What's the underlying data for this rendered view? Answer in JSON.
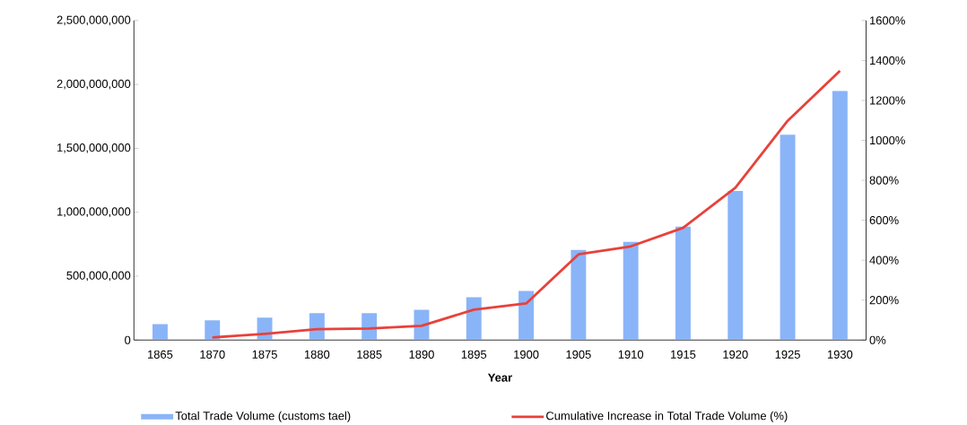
{
  "chart_data": {
    "type": "bar",
    "xlabel": "Year",
    "categories": [
      "1865",
      "1870",
      "1875",
      "1880",
      "1885",
      "1890",
      "1895",
      "1900",
      "1905",
      "1910",
      "1915",
      "1920",
      "1925",
      "1930"
    ],
    "series": [
      {
        "name": "Total Trade Volume (customs tael)",
        "color": "#8ab4f8",
        "values": [
          125000000,
          154000000,
          175000000,
          210000000,
          210000000,
          237000000,
          335000000,
          384000000,
          705000000,
          768000000,
          887000000,
          1166000000,
          1606000000,
          1948000000
        ]
      },
      {
        "name": "Cumulative Increase in Total Trade Volume (%)",
        "type": "line",
        "axis": "y2",
        "color": "#e8413a",
        "values": [
          null,
          13,
          31,
          54,
          58,
          71,
          152,
          183,
          429,
          469,
          562,
          763,
          1098,
          1348
        ]
      }
    ],
    "ylim": [
      0,
      2500000000
    ],
    "yticks": [
      {
        "value": 0,
        "label": "0"
      },
      {
        "value": 500000000,
        "label": "500,000,000"
      },
      {
        "value": 1000000000,
        "label": "1,000,000,000"
      },
      {
        "value": 1500000000,
        "label": "1,500,000,000"
      },
      {
        "value": 2000000000,
        "label": "2,000,000,000"
      },
      {
        "value": 2500000000,
        "label": "2,500,000,000"
      }
    ],
    "y2lim": [
      0,
      1600
    ],
    "y2ticks": [
      {
        "value": 0,
        "label": "0%"
      },
      {
        "value": 200,
        "label": "200%"
      },
      {
        "value": 400,
        "label": "400%"
      },
      {
        "value": 600,
        "label": "600%"
      },
      {
        "value": 800,
        "label": "800%"
      },
      {
        "value": 1000,
        "label": "1000%"
      },
      {
        "value": 1200,
        "label": "1200%"
      },
      {
        "value": 1400,
        "label": "1400%"
      },
      {
        "value": 1600,
        "label": "1600%"
      }
    ],
    "legend": "bottom",
    "marker": "none"
  }
}
